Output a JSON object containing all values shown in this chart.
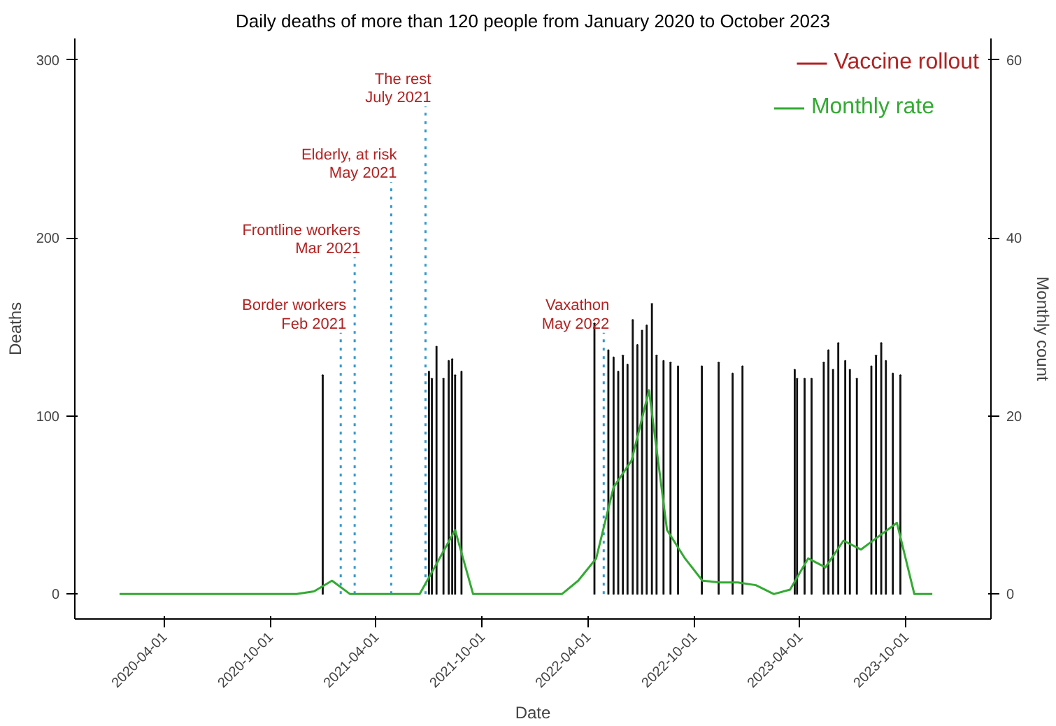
{
  "chart_data": {
    "type": "bar",
    "title": "Daily deaths of more than 120 people from January 2020 to October 2023",
    "xlabel": "Date",
    "ylabel": "Deaths",
    "y2label": "Monthly count",
    "xlim": [
      "2019-10-30",
      "2024-02-24"
    ],
    "xticks": [
      {
        "value": "2020-04-01",
        "label": "2020-04-01"
      },
      {
        "value": "2020-10-01",
        "label": "2020-10-01"
      },
      {
        "value": "2021-04-01",
        "label": "2021-04-01"
      },
      {
        "value": "2021-10-01",
        "label": "2021-10-01"
      },
      {
        "value": "2022-04-01",
        "label": "2022-04-01"
      },
      {
        "value": "2022-10-01",
        "label": "2022-10-01"
      },
      {
        "value": "2023-04-01",
        "label": "2023-04-01"
      },
      {
        "value": "2023-10-01",
        "label": "2023-10-01"
      }
    ],
    "ylim": [
      -14,
      312
    ],
    "yticks": [
      0,
      100,
      200,
      300
    ],
    "y2lim": [
      -2.8,
      62.4
    ],
    "y2ticks": [
      0,
      20,
      40,
      60
    ],
    "grid": false,
    "legend": "top right",
    "annotations": [
      "Vaccine rollout"
    ],
    "ref_lines": [
      {
        "axis": "x",
        "value": "2021-01-30",
        "label": "Border workers\nFeb 2021",
        "color": "#3399cc",
        "line_style": "dotted"
      },
      {
        "axis": "x",
        "value": "2021-02-23",
        "label": "Frontline workers\nMar 2021",
        "color": "#3399cc",
        "line_style": "dotted"
      },
      {
        "axis": "x",
        "value": "2021-04-27",
        "label": "Elderly, at risk\nMay 2021",
        "color": "#3399cc",
        "line_style": "dotted"
      },
      {
        "axis": "x",
        "value": "2021-06-25",
        "label": "The rest\nJuly 2021",
        "color": "#3399cc",
        "line_style": "dotted"
      },
      {
        "axis": "x",
        "value": "2022-04-28",
        "label": "Vaxathon\nMay 2022",
        "color": "#3399cc",
        "line_style": "dotted"
      }
    ],
    "series": [
      {
        "color": "#111111",
        "x": [
          "2020-12-30",
          "2021-07-01",
          "2021-07-06",
          "2021-07-14",
          "2021-07-26",
          "2021-08-04",
          "2021-08-10",
          "2021-08-15",
          "2021-08-26",
          "2022-04-12",
          "2022-05-06",
          "2022-05-15",
          "2022-05-23",
          "2022-05-31",
          "2022-06-08",
          "2022-06-17",
          "2022-06-25",
          "2022-07-03",
          "2022-07-11",
          "2022-07-20",
          "2022-07-28",
          "2022-08-09",
          "2022-08-21",
          "2022-09-03",
          "2022-10-14",
          "2022-11-12",
          "2022-12-06",
          "2022-12-23",
          "2023-03-23",
          "2023-03-27",
          "2023-04-09",
          "2023-04-21",
          "2023-05-12",
          "2023-05-20",
          "2023-05-28",
          "2023-06-06",
          "2023-06-18",
          "2023-06-26",
          "2023-07-08",
          "2023-08-02",
          "2023-08-10",
          "2023-08-19",
          "2023-08-27",
          "2023-09-08",
          "2023-09-21"
        ],
        "values": [
          123,
          125,
          121,
          139,
          121,
          131,
          132,
          123,
          125,
          152,
          137,
          133,
          125,
          134,
          129,
          154,
          140,
          148,
          151,
          163,
          134,
          131,
          130,
          128,
          128,
          130,
          124,
          128,
          126,
          121,
          121,
          121,
          130,
          137,
          126,
          141,
          131,
          126,
          121,
          128,
          134,
          141,
          131,
          124,
          123
        ]
      },
      {
        "type": "line",
        "name": "Monthly rate",
        "color": "#33aa33",
        "axis": "y2",
        "x": [
          "2020-01-15",
          "2020-11-15",
          "2020-12-15",
          "2021-01-15",
          "2021-02-15",
          "2021-06-15",
          "2021-07-15",
          "2021-08-15",
          "2021-09-15",
          "2022-02-15",
          "2022-03-15",
          "2022-04-15",
          "2022-05-15",
          "2022-06-15",
          "2022-07-15",
          "2022-08-15",
          "2022-09-15",
          "2022-10-15",
          "2022-11-15",
          "2022-12-15",
          "2023-01-15",
          "2023-02-15",
          "2023-03-15",
          "2023-04-15",
          "2023-05-15",
          "2023-06-15",
          "2023-07-15",
          "2023-08-15",
          "2023-09-15",
          "2023-10-15",
          "2023-11-15"
        ],
        "values": [
          0,
          0,
          0.3,
          1.5,
          0,
          0,
          3.5,
          7.2,
          0,
          0,
          1.5,
          4,
          12,
          15,
          22.9,
          7.2,
          4,
          1.5,
          1.3,
          1.3,
          1,
          0,
          0.5,
          4,
          3,
          6,
          5,
          6.5,
          8,
          0,
          0
        ]
      }
    ]
  }
}
